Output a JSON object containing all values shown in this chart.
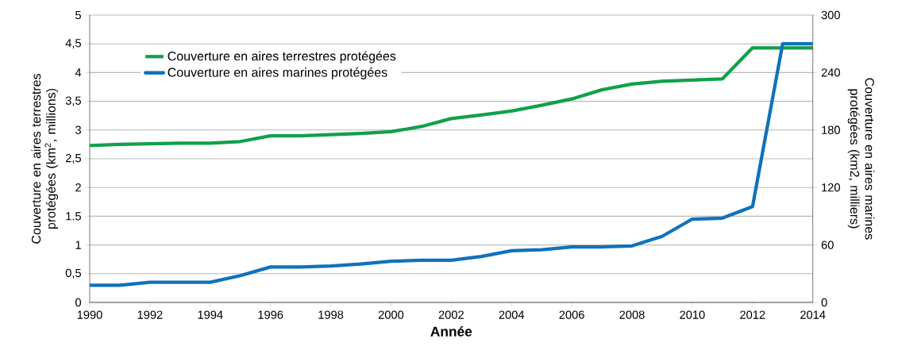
{
  "chart_data": {
    "type": "line",
    "xlabel": "**Année**",
    "ylabel": "Couverture en aires terrestres protégées (km$^{2}$, millions)",
    "y2label": "Couverture en aires marines protégées (km2, milliers)",
    "x": [
      1990,
      1991,
      1992,
      1993,
      1994,
      1995,
      1996,
      1997,
      1998,
      1999,
      2000,
      2001,
      2002,
      2003,
      2004,
      2005,
      2006,
      2007,
      2008,
      2009,
      2010,
      2011,
      2012,
      2013,
      2014
    ],
    "series": [
      {
        "name": "Couverture en aires terrestres protégées",
        "color": "#12a04a",
        "values": [
          2.73,
          2.75,
          2.76,
          2.77,
          2.77,
          2.8,
          2.9,
          2.9,
          2.92,
          2.94,
          2.97,
          3.06,
          3.2,
          3.26,
          3.33,
          3.43,
          3.54,
          3.7,
          3.8,
          3.85,
          3.87,
          3.89,
          4.43,
          4.43,
          4.43
        ]
      },
      {
        "name": "Couverture en aires marines protégées",
        "color": "#1072bb",
        "axis": "y2",
        "values": [
          18,
          18,
          21,
          21,
          21,
          28,
          37,
          37,
          38,
          40,
          43,
          44,
          44,
          48,
          54,
          55,
          58,
          58,
          59,
          69,
          87,
          88,
          100,
          270,
          270
        ]
      }
    ],
    "xlim": [
      1990,
      2014
    ],
    "xticks": [
      1990,
      1992,
      1994,
      1996,
      1998,
      2000,
      2002,
      2004,
      2006,
      2008,
      2010,
      2012,
      2014
    ],
    "ylim": [
      0,
      5
    ],
    "yticks": [
      0,
      {
        "value": 0.5,
        "label": "0,5"
      },
      1,
      {
        "value": 1.5,
        "label": "1.5"
      },
      2,
      {
        "value": 2.5,
        "label": "2,5"
      },
      3,
      {
        "value": 3.5,
        "label": "3,5"
      },
      4,
      {
        "value": 4.5,
        "label": "4,5"
      },
      5
    ],
    "y2lim": [
      0,
      300
    ],
    "y2ticks": [
      0,
      60,
      120,
      180,
      240,
      300
    ],
    "grid": "y",
    "legend": "top left",
    "marker": "none",
    "line_style": "solid"
  }
}
